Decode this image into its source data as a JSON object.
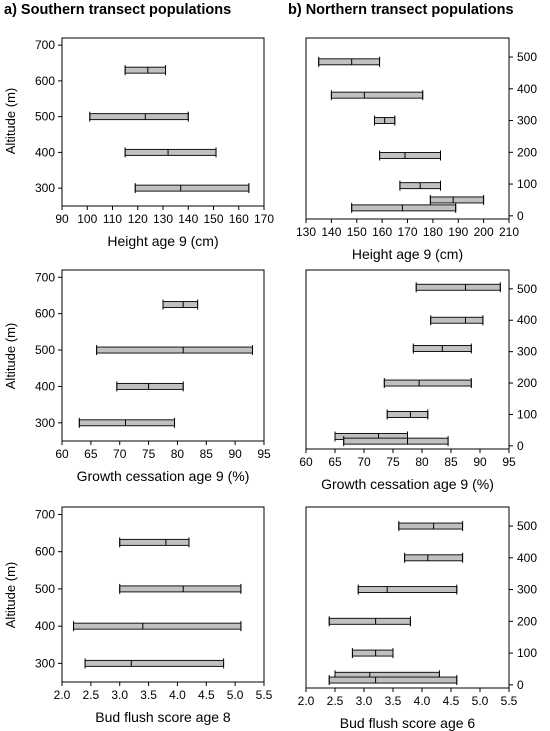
{
  "titles": {
    "left": "a) Southern transect populations",
    "right": "b) Northern transect populations"
  },
  "chart_data": [
    {
      "type": "range-bar",
      "panel": "a-height",
      "xlabel": "Height age 9 (cm)",
      "ylabel": "Altitude (m)",
      "xlim": [
        90,
        170
      ],
      "xticks": [
        90,
        100,
        110,
        120,
        130,
        140,
        150,
        160,
        170
      ],
      "ylim": [
        250,
        720
      ],
      "yticks": [
        300,
        400,
        500,
        600,
        700
      ],
      "y_axis_side": "left",
      "bars": [
        {
          "y": 630,
          "low": 115,
          "mean": 124,
          "high": 131
        },
        {
          "y": 500,
          "low": 101,
          "mean": 123,
          "high": 140
        },
        {
          "y": 400,
          "low": 115,
          "mean": 132,
          "high": 151
        },
        {
          "y": 300,
          "low": 119,
          "mean": 137,
          "high": 164
        }
      ]
    },
    {
      "type": "range-bar",
      "panel": "b-height",
      "xlabel": "Height age 9 (cm)",
      "xlim": [
        130,
        210
      ],
      "xticks": [
        130,
        140,
        150,
        160,
        170,
        180,
        190,
        200,
        210
      ],
      "ylim": [
        -10,
        560
      ],
      "yticks": [
        0,
        100,
        200,
        300,
        400,
        500
      ],
      "y_axis_side": "right",
      "bars": [
        {
          "y": 485,
          "low": 135,
          "mean": 148,
          "high": 159
        },
        {
          "y": 380,
          "low": 140,
          "mean": 153,
          "high": 176
        },
        {
          "y": 300,
          "low": 157,
          "mean": 161,
          "high": 165
        },
        {
          "y": 190,
          "low": 159,
          "mean": 169,
          "high": 183
        },
        {
          "y": 95,
          "low": 167,
          "mean": 175,
          "high": 183
        },
        {
          "y": 50,
          "low": 179,
          "mean": 188,
          "high": 200
        },
        {
          "y": 25,
          "low": 148,
          "mean": 168,
          "high": 189
        }
      ]
    },
    {
      "type": "range-bar",
      "panel": "a-growth",
      "xlabel": "Growth cessation age 9 (%)",
      "ylabel": "Altitude (m)",
      "xlim": [
        60,
        95
      ],
      "xticks": [
        60,
        65,
        70,
        75,
        80,
        85,
        90,
        95
      ],
      "ylim": [
        250,
        720
      ],
      "yticks": [
        300,
        400,
        500,
        600,
        700
      ],
      "y_axis_side": "left",
      "bars": [
        {
          "y": 625,
          "low": 77.5,
          "mean": 81,
          "high": 83.5
        },
        {
          "y": 500,
          "low": 66,
          "mean": 81,
          "high": 93
        },
        {
          "y": 400,
          "low": 69.5,
          "mean": 75,
          "high": 81
        },
        {
          "y": 300,
          "low": 63,
          "mean": 71,
          "high": 79.5
        }
      ]
    },
    {
      "type": "range-bar",
      "panel": "b-growth",
      "xlabel": "Growth cessation age 9 (%)",
      "xlim": [
        60,
        95
      ],
      "xticks": [
        60,
        65,
        70,
        75,
        80,
        85,
        90,
        95
      ],
      "ylim": [
        -10,
        560
      ],
      "yticks": [
        0,
        100,
        200,
        300,
        400,
        500
      ],
      "y_axis_side": "right",
      "bars": [
        {
          "y": 505,
          "low": 79,
          "mean": 87.5,
          "high": 93.5
        },
        {
          "y": 400,
          "low": 81.5,
          "mean": 87.5,
          "high": 90.5
        },
        {
          "y": 310,
          "low": 78.5,
          "mean": 83.5,
          "high": 88.5
        },
        {
          "y": 200,
          "low": 73.5,
          "mean": 79.5,
          "high": 88.5
        },
        {
          "y": 100,
          "low": 74,
          "mean": 78,
          "high": 81
        },
        {
          "y": 30,
          "low": 65,
          "mean": 72.5,
          "high": 77.5
        },
        {
          "y": 15,
          "low": 66.5,
          "mean": 77.5,
          "high": 84.5
        }
      ]
    },
    {
      "type": "range-bar",
      "panel": "a-budflush",
      "xlabel": "Bud flush score age 8",
      "ylabel": "Altitude (m)",
      "xlim": [
        2.0,
        5.5
      ],
      "xticks": [
        2.0,
        2.5,
        3.0,
        3.5,
        4.0,
        4.5,
        5.0,
        5.5
      ],
      "ylim": [
        250,
        720
      ],
      "yticks": [
        300,
        400,
        500,
        600,
        700
      ],
      "y_axis_side": "left",
      "bars": [
        {
          "y": 625,
          "low": 3.0,
          "mean": 3.8,
          "high": 4.2
        },
        {
          "y": 500,
          "low": 3.0,
          "mean": 4.1,
          "high": 5.1
        },
        {
          "y": 400,
          "low": 2.2,
          "mean": 3.4,
          "high": 5.1
        },
        {
          "y": 300,
          "low": 2.4,
          "mean": 3.2,
          "high": 4.8
        }
      ]
    },
    {
      "type": "range-bar",
      "panel": "b-budflush",
      "xlabel": "Bud flush score age 6",
      "xlim": [
        2.0,
        5.5
      ],
      "xticks": [
        2.0,
        2.5,
        3.0,
        3.5,
        4.0,
        4.5,
        5.0,
        5.5
      ],
      "ylim": [
        -10,
        560
      ],
      "yticks": [
        0,
        100,
        200,
        300,
        400,
        500
      ],
      "y_axis_side": "right",
      "bars": [
        {
          "y": 500,
          "low": 3.6,
          "mean": 4.2,
          "high": 4.7
        },
        {
          "y": 400,
          "low": 3.7,
          "mean": 4.1,
          "high": 4.7
        },
        {
          "y": 300,
          "low": 2.9,
          "mean": 3.4,
          "high": 4.6
        },
        {
          "y": 200,
          "low": 2.4,
          "mean": 3.2,
          "high": 3.8
        },
        {
          "y": 100,
          "low": 2.8,
          "mean": 3.2,
          "high": 3.5
        },
        {
          "y": 30,
          "low": 2.5,
          "mean": 3.1,
          "high": 4.3
        },
        {
          "y": 15,
          "low": 2.4,
          "mean": 3.2,
          "high": 4.6
        }
      ]
    }
  ]
}
